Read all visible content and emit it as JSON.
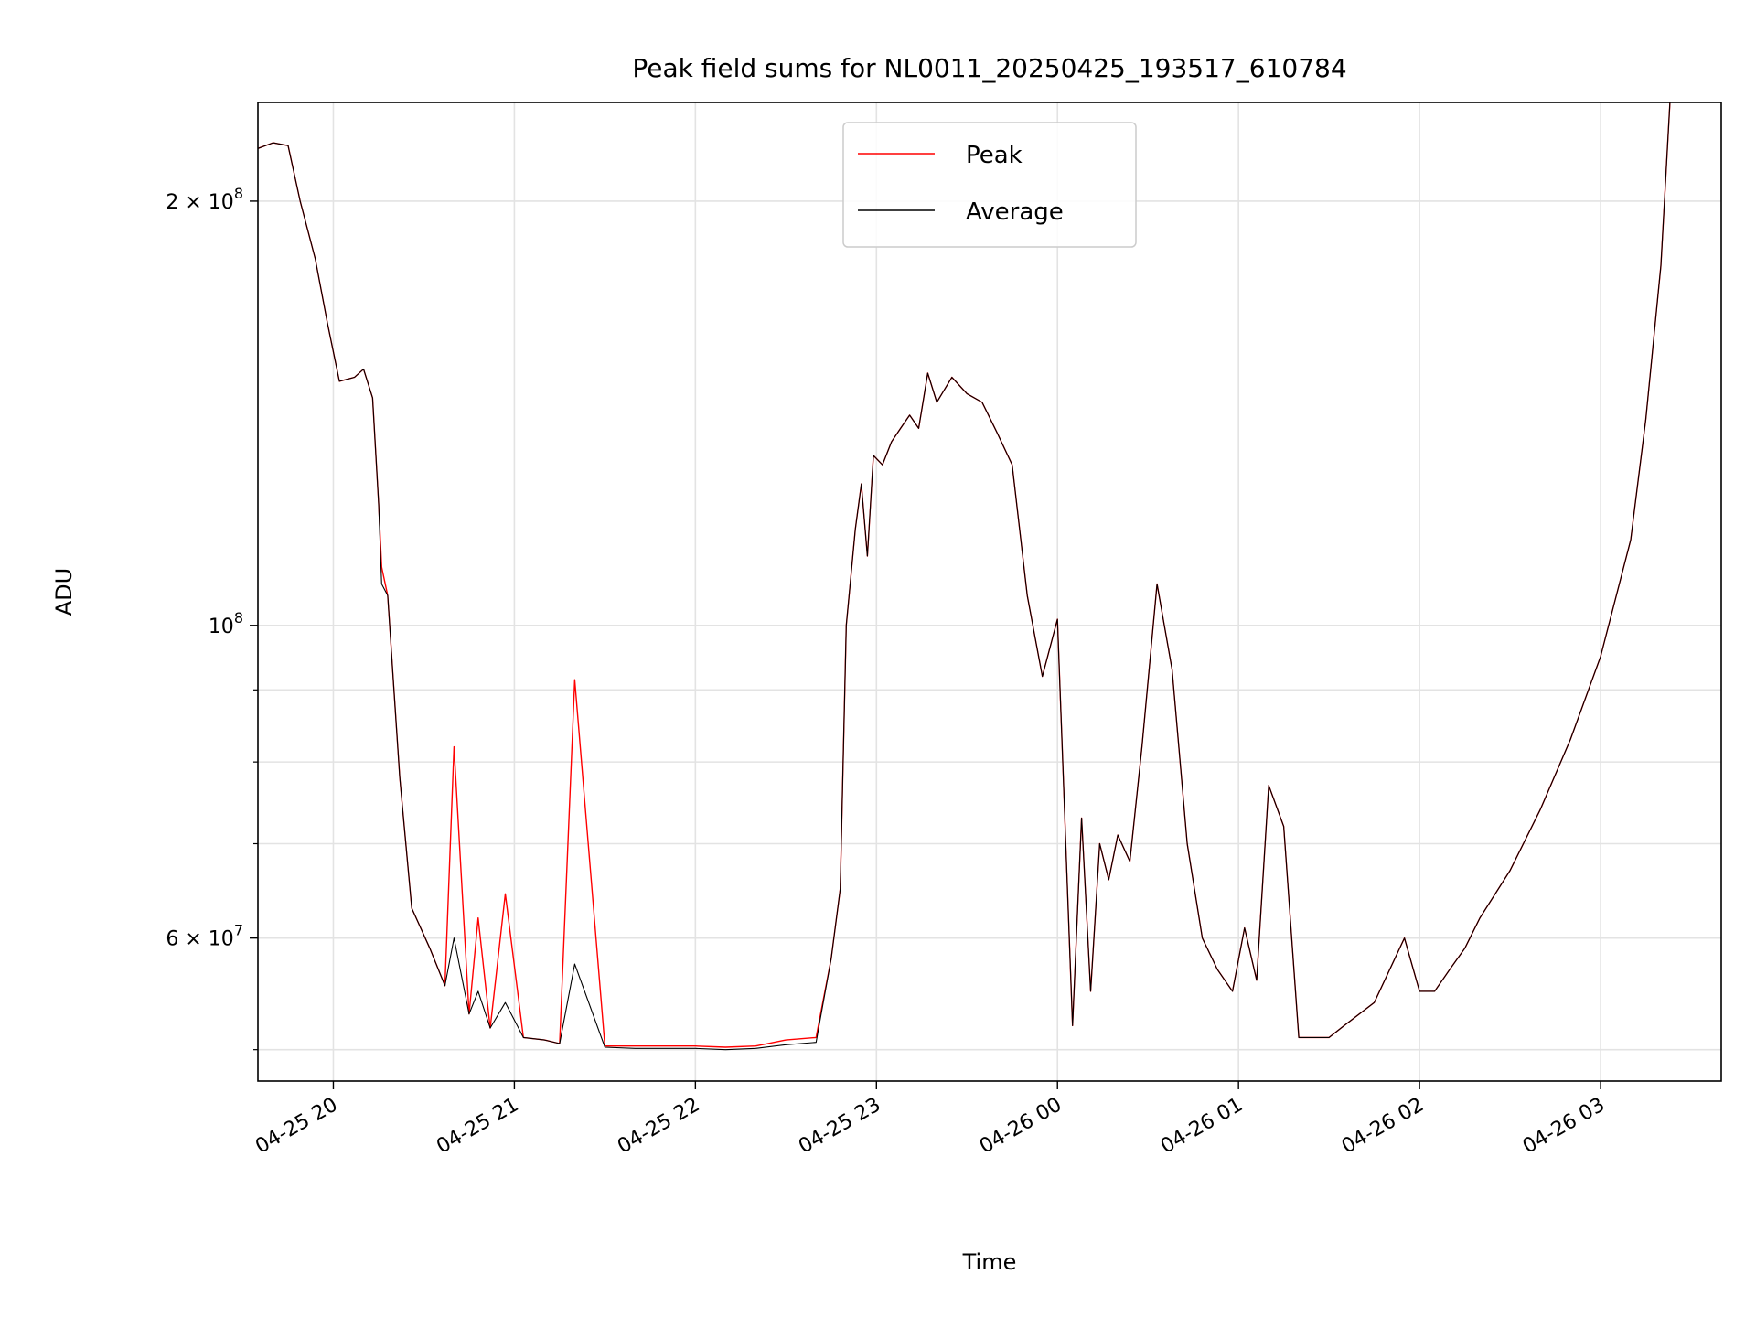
{
  "chart_data": {
    "type": "line",
    "title": "Peak field sums for NL0011_20250425_193517_610784",
    "xlabel": "Time",
    "ylabel": "ADU",
    "x_tick_labels": [
      "04-25 20",
      "04-25 21",
      "04-25 22",
      "04-25 23",
      "04-26 00",
      "04-26 01",
      "04-26 02",
      "04-26 03"
    ],
    "x_tick_times": [
      "2025-04-25 20:00",
      "2025-04-25 21:00",
      "2025-04-25 22:00",
      "2025-04-25 23:00",
      "2025-04-26 00:00",
      "2025-04-26 01:00",
      "2025-04-26 02:00",
      "2025-04-26 03:00"
    ],
    "xlim": [
      "2025-04-25 19:35",
      "2025-04-26 03:40"
    ],
    "y_scale": "log",
    "ylim": [
      47500000,
      235000000
    ],
    "y_ticks": [
      {
        "value": 200000000,
        "mantissa": "2",
        "exponent": "8"
      },
      {
        "value": 100000000,
        "mantissa": "",
        "exponent": "8"
      },
      {
        "value": 60000000,
        "mantissa": "6",
        "exponent": "7"
      }
    ],
    "y_minor_ticks": [
      50000000,
      70000000,
      80000000,
      90000000
    ],
    "grid": true,
    "legend_position": "top-center",
    "series": [
      {
        "name": "Peak",
        "color": "#ff0000",
        "x": [
          "2025-04-25 19:35",
          "2025-04-25 19:40",
          "2025-04-25 19:45",
          "2025-04-25 19:49",
          "2025-04-25 19:54",
          "2025-04-25 19:58",
          "2025-04-25 20:02",
          "2025-04-25 20:07",
          "2025-04-25 20:10",
          "2025-04-25 20:13",
          "2025-04-25 20:15",
          "2025-04-25 20:16",
          "2025-04-25 20:18",
          "2025-04-25 20:22",
          "2025-04-25 20:26",
          "2025-04-25 20:32",
          "2025-04-25 20:37",
          "2025-04-25 20:40",
          "2025-04-25 20:45",
          "2025-04-25 20:48",
          "2025-04-25 20:52",
          "2025-04-25 20:57",
          "2025-04-25 21:03",
          "2025-04-25 21:10",
          "2025-04-25 21:15",
          "2025-04-25 21:20",
          "2025-04-25 21:30",
          "2025-04-25 21:40",
          "2025-04-25 21:50",
          "2025-04-25 22:00",
          "2025-04-25 22:10",
          "2025-04-25 22:20",
          "2025-04-25 22:30",
          "2025-04-25 22:40",
          "2025-04-25 22:45",
          "2025-04-25 22:48",
          "2025-04-25 22:50",
          "2025-04-25 22:53",
          "2025-04-25 22:55",
          "2025-04-25 22:57",
          "2025-04-25 22:59",
          "2025-04-25 23:02",
          "2025-04-25 23:05",
          "2025-04-25 23:08",
          "2025-04-25 23:11",
          "2025-04-25 23:14",
          "2025-04-25 23:17",
          "2025-04-25 23:20",
          "2025-04-25 23:25",
          "2025-04-25 23:30",
          "2025-04-25 23:35",
          "2025-04-25 23:40",
          "2025-04-25 23:45",
          "2025-04-25 23:50",
          "2025-04-25 23:55",
          "2025-04-26 00:00",
          "2025-04-26 00:05",
          "2025-04-26 00:08",
          "2025-04-26 00:11",
          "2025-04-26 00:14",
          "2025-04-26 00:17",
          "2025-04-26 00:20",
          "2025-04-26 00:24",
          "2025-04-26 00:28",
          "2025-04-26 00:33",
          "2025-04-26 00:38",
          "2025-04-26 00:43",
          "2025-04-26 00:48",
          "2025-04-26 00:53",
          "2025-04-26 00:58",
          "2025-04-26 01:02",
          "2025-04-26 01:06",
          "2025-04-26 01:10",
          "2025-04-26 01:15",
          "2025-04-26 01:20",
          "2025-04-26 01:25",
          "2025-04-26 01:30",
          "2025-04-26 01:35",
          "2025-04-26 01:45",
          "2025-04-26 01:55",
          "2025-04-26 02:00",
          "2025-04-26 02:05",
          "2025-04-26 02:10",
          "2025-04-26 02:15",
          "2025-04-26 02:20",
          "2025-04-26 02:30",
          "2025-04-26 02:40",
          "2025-04-26 02:50",
          "2025-04-26 03:00",
          "2025-04-26 03:10",
          "2025-04-26 03:15",
          "2025-04-26 03:20",
          "2025-04-26 03:23"
        ],
        "y": [
          218000000,
          220000000,
          219000000,
          200000000,
          182000000,
          164000000,
          149000000,
          150000000,
          152000000,
          145000000,
          122000000,
          110000000,
          105000000,
          78000000,
          63000000,
          59000000,
          55500000,
          82000000,
          53000000,
          62000000,
          51800000,
          64500000,
          51000000,
          50800000,
          50500000,
          91500000,
          50300000,
          50300000,
          50300000,
          50300000,
          50200000,
          50300000,
          50800000,
          51000000,
          58000000,
          65000000,
          100000000,
          117000000,
          126000000,
          112000000,
          132000000,
          130000000,
          135000000,
          138000000,
          141000000,
          138000000,
          151000000,
          144000000,
          150000000,
          146000000,
          144000000,
          137000000,
          130000000,
          105000000,
          92000000,
          101000000,
          52000000,
          73000000,
          55000000,
          70000000,
          66000000,
          71000000,
          68000000,
          82000000,
          107000000,
          93000000,
          70000000,
          60000000,
          57000000,
          55000000,
          61000000,
          56000000,
          77000000,
          72000000,
          51000000,
          51000000,
          51000000,
          52000000,
          54000000,
          60000000,
          55000000,
          55000000,
          57000000,
          59000000,
          62000000,
          67000000,
          74000000,
          83000000,
          95000000,
          115000000,
          140000000,
          180000000,
          235000000
        ]
      },
      {
        "name": "Average",
        "color": "#000000",
        "x": [
          "2025-04-25 19:35",
          "2025-04-25 19:40",
          "2025-04-25 19:45",
          "2025-04-25 19:49",
          "2025-04-25 19:54",
          "2025-04-25 19:58",
          "2025-04-25 20:02",
          "2025-04-25 20:07",
          "2025-04-25 20:10",
          "2025-04-25 20:13",
          "2025-04-25 20:15",
          "2025-04-25 20:16",
          "2025-04-25 20:18",
          "2025-04-25 20:22",
          "2025-04-25 20:26",
          "2025-04-25 20:32",
          "2025-04-25 20:37",
          "2025-04-25 20:40",
          "2025-04-25 20:45",
          "2025-04-25 20:48",
          "2025-04-25 20:52",
          "2025-04-25 20:57",
          "2025-04-25 21:03",
          "2025-04-25 21:10",
          "2025-04-25 21:15",
          "2025-04-25 21:20",
          "2025-04-25 21:30",
          "2025-04-25 21:40",
          "2025-04-25 21:50",
          "2025-04-25 22:00",
          "2025-04-25 22:10",
          "2025-04-25 22:20",
          "2025-04-25 22:30",
          "2025-04-25 22:40",
          "2025-04-25 22:45",
          "2025-04-25 22:48",
          "2025-04-25 22:50",
          "2025-04-25 22:53",
          "2025-04-25 22:55",
          "2025-04-25 22:57",
          "2025-04-25 22:59",
          "2025-04-25 23:02",
          "2025-04-25 23:05",
          "2025-04-25 23:08",
          "2025-04-25 23:11",
          "2025-04-25 23:14",
          "2025-04-25 23:17",
          "2025-04-25 23:20",
          "2025-04-25 23:25",
          "2025-04-25 23:30",
          "2025-04-25 23:35",
          "2025-04-25 23:40",
          "2025-04-25 23:45",
          "2025-04-25 23:50",
          "2025-04-25 23:55",
          "2025-04-26 00:00",
          "2025-04-26 00:05",
          "2025-04-26 00:08",
          "2025-04-26 00:11",
          "2025-04-26 00:14",
          "2025-04-26 00:17",
          "2025-04-26 00:20",
          "2025-04-26 00:24",
          "2025-04-26 00:28",
          "2025-04-26 00:33",
          "2025-04-26 00:38",
          "2025-04-26 00:43",
          "2025-04-26 00:48",
          "2025-04-26 00:53",
          "2025-04-26 00:58",
          "2025-04-26 01:02",
          "2025-04-26 01:06",
          "2025-04-26 01:10",
          "2025-04-26 01:15",
          "2025-04-26 01:20",
          "2025-04-26 01:25",
          "2025-04-26 01:30",
          "2025-04-26 01:35",
          "2025-04-26 01:45",
          "2025-04-26 01:55",
          "2025-04-26 02:00",
          "2025-04-26 02:05",
          "2025-04-26 02:10",
          "2025-04-26 02:15",
          "2025-04-26 02:20",
          "2025-04-26 02:30",
          "2025-04-26 02:40",
          "2025-04-26 02:50",
          "2025-04-26 03:00",
          "2025-04-26 03:10",
          "2025-04-26 03:15",
          "2025-04-26 03:20",
          "2025-04-26 03:23"
        ],
        "y": [
          218000000,
          220000000,
          219000000,
          200000000,
          182000000,
          164000000,
          149000000,
          150000000,
          152000000,
          145000000,
          122000000,
          107000000,
          105000000,
          78000000,
          63000000,
          59000000,
          55500000,
          60000000,
          53000000,
          55000000,
          51800000,
          54000000,
          51000000,
          50800000,
          50500000,
          57500000,
          50200000,
          50100000,
          50100000,
          50100000,
          50000000,
          50100000,
          50400000,
          50600000,
          58000000,
          65000000,
          100000000,
          117000000,
          126000000,
          112000000,
          132000000,
          130000000,
          135000000,
          138000000,
          141000000,
          138000000,
          151000000,
          144000000,
          150000000,
          146000000,
          144000000,
          137000000,
          130000000,
          105000000,
          92000000,
          101000000,
          52000000,
          73000000,
          55000000,
          70000000,
          66000000,
          71000000,
          68000000,
          82000000,
          107000000,
          93000000,
          70000000,
          60000000,
          57000000,
          55000000,
          61000000,
          56000000,
          77000000,
          72000000,
          51000000,
          51000000,
          51000000,
          52000000,
          54000000,
          60000000,
          55000000,
          55000000,
          57000000,
          59000000,
          62000000,
          67000000,
          74000000,
          83000000,
          95000000,
          115000000,
          140000000,
          180000000,
          235000000
        ]
      }
    ]
  }
}
